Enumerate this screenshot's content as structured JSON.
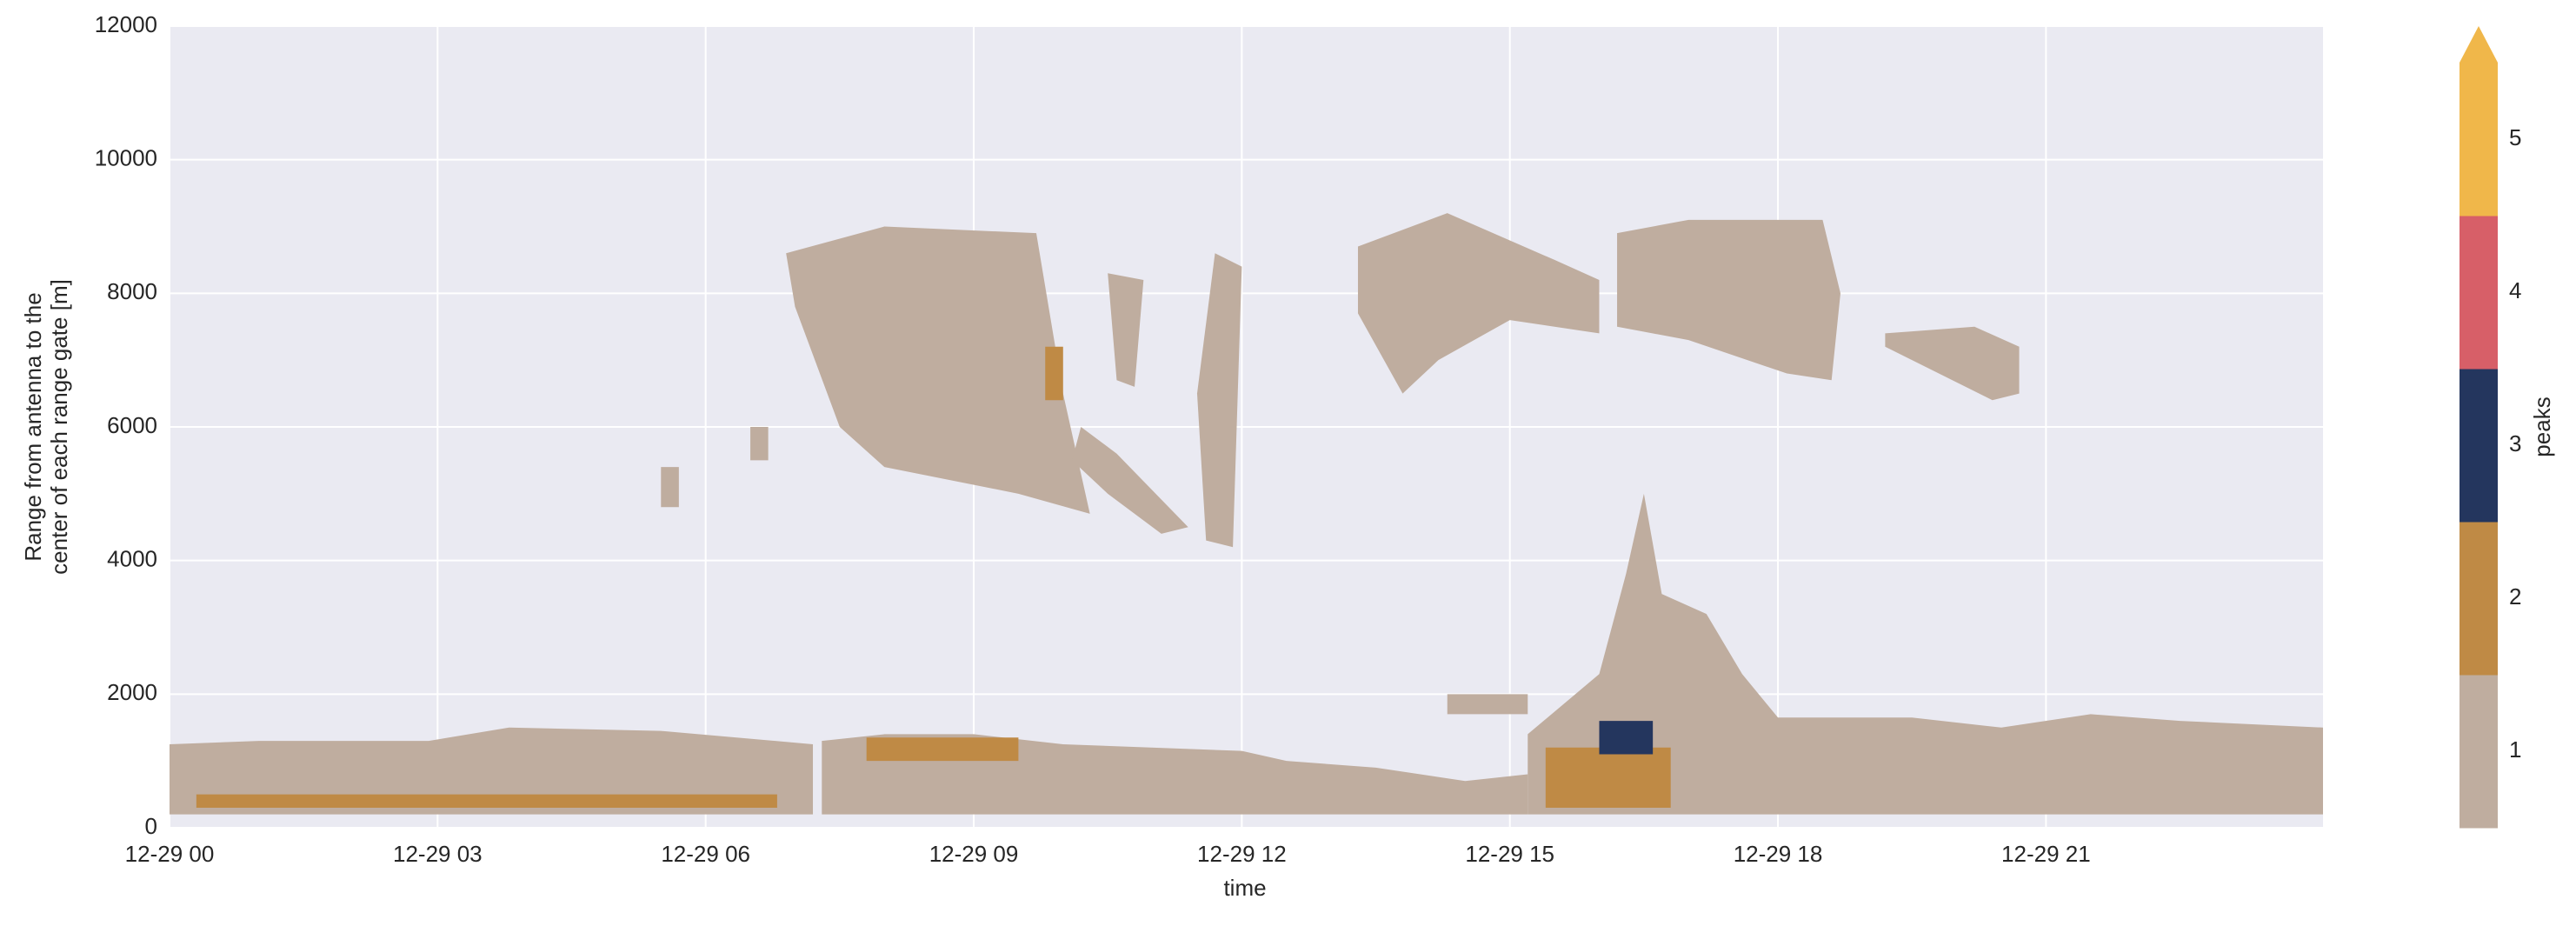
{
  "chart_data": {
    "type": "heatmap",
    "xlabel": "time",
    "ylabel": [
      "Range from antenna to the",
      "center of each range gate [m]"
    ],
    "xlim": [
      0,
      24.1
    ],
    "xticks": [
      {
        "value": 0,
        "label": "12-29 00"
      },
      {
        "value": 3,
        "label": "12-29 03"
      },
      {
        "value": 6,
        "label": "12-29 06"
      },
      {
        "value": 9,
        "label": "12-29 09"
      },
      {
        "value": 12,
        "label": "12-29 12"
      },
      {
        "value": 15,
        "label": "12-29 15"
      },
      {
        "value": 18,
        "label": "12-29 18"
      },
      {
        "value": 21,
        "label": "12-29 21"
      }
    ],
    "ylim": [
      0,
      12000
    ],
    "yticks": [
      0,
      2000,
      4000,
      6000,
      8000,
      10000,
      12000
    ],
    "grid": true,
    "colorbar": {
      "label": "peaks",
      "levels": [
        1,
        2,
        3,
        4,
        5
      ],
      "colors": [
        "#bfad9f",
        "#bf8a45",
        "#24365e",
        "#d75f68",
        "#f0b74a"
      ],
      "extend": "max"
    },
    "regions": [
      {
        "value": 1,
        "x": [
          0,
          1,
          2.9,
          3.8,
          5.5,
          7.2,
          7.2,
          0
        ],
        "y": [
          1250,
          1300,
          1300,
          1500,
          1450,
          1250,
          200,
          200
        ]
      },
      {
        "value": 1,
        "x": [
          7.3,
          8.0,
          9.0,
          10.0,
          12.0,
          12.5,
          13.5,
          14.5,
          15.2,
          15.2,
          7.3
        ],
        "y": [
          1300,
          1400,
          1400,
          1250,
          1150,
          1000,
          900,
          700,
          800,
          200,
          200
        ]
      },
      {
        "value": 1,
        "x": [
          15.2,
          16.0,
          16.3,
          16.5,
          16.7,
          17.2,
          17.6,
          18.0,
          19.5,
          20.5,
          21.5,
          22.5,
          24.1,
          24.1,
          15.2
        ],
        "y": [
          1400,
          2300,
          3800,
          5000,
          3500,
          3200,
          2300,
          1650,
          1650,
          1500,
          1700,
          1600,
          1500,
          200,
          200
        ]
      },
      {
        "value": 1,
        "x": [
          14.3,
          15.2,
          15.2,
          14.3
        ],
        "y": [
          2000,
          2000,
          1700,
          1700
        ]
      },
      {
        "value": 1,
        "x": [
          6.9,
          8.0,
          9.7,
          10.0,
          10.3,
          9.5,
          8.0,
          7.5,
          7.0
        ],
        "y": [
          8600,
          9000,
          8900,
          6500,
          4700,
          5000,
          5400,
          6000,
          7800
        ]
      },
      {
        "value": 1,
        "x": [
          10.2,
          10.6,
          11.4,
          11.1,
          10.5,
          10.1
        ],
        "y": [
          6000,
          5600,
          4500,
          4400,
          5000,
          5500
        ]
      },
      {
        "value": 1,
        "x": [
          11.7,
          12.0,
          11.9,
          11.6,
          11.5
        ],
        "y": [
          8600,
          8400,
          4200,
          4300,
          6500
        ]
      },
      {
        "value": 1,
        "x": [
          10.5,
          10.9,
          10.8,
          10.6
        ],
        "y": [
          8300,
          8200,
          6600,
          6700
        ]
      },
      {
        "value": 1,
        "x": [
          13.3,
          14.3,
          15.5,
          16.0,
          16.0,
          15.0,
          14.2,
          13.8,
          13.3
        ],
        "y": [
          8700,
          9200,
          8500,
          8200,
          7400,
          7600,
          7000,
          6500,
          7700
        ]
      },
      {
        "value": 1,
        "x": [
          16.2,
          17.0,
          18.5,
          18.7,
          18.6,
          18.1,
          17.0,
          16.2
        ],
        "y": [
          8900,
          9100,
          9100,
          8000,
          6700,
          6800,
          7300,
          7500
        ]
      },
      {
        "value": 1,
        "x": [
          19.2,
          20.2,
          20.7,
          20.7,
          20.4,
          19.5,
          19.2
        ],
        "y": [
          7400,
          7500,
          7200,
          6500,
          6400,
          7000,
          7200
        ]
      },
      {
        "value": 1,
        "x": [
          5.5,
          5.7,
          5.7,
          5.5
        ],
        "y": [
          5400,
          5400,
          4800,
          4800
        ]
      },
      {
        "value": 1,
        "x": [
          6.5,
          6.7,
          6.7,
          6.5
        ],
        "y": [
          6000,
          6000,
          5500,
          5500
        ]
      },
      {
        "value": 2,
        "x": [
          7.8,
          9.5,
          9.5,
          7.8
        ],
        "y": [
          1350,
          1350,
          1000,
          1000
        ]
      },
      {
        "value": 2,
        "x": [
          0.3,
          6.8,
          6.8,
          0.3
        ],
        "y": [
          500,
          500,
          300,
          300
        ]
      },
      {
        "value": 2,
        "x": [
          15.4,
          16.8,
          16.8,
          15.4
        ],
        "y": [
          1200,
          1200,
          300,
          300
        ]
      },
      {
        "value": 3,
        "x": [
          16.0,
          16.6,
          16.6,
          16.0
        ],
        "y": [
          1600,
          1600,
          1100,
          1100
        ]
      },
      {
        "value": 2,
        "x": [
          9.8,
          10.0,
          10.0,
          9.8
        ],
        "y": [
          7200,
          7200,
          6400,
          6400
        ]
      }
    ]
  }
}
